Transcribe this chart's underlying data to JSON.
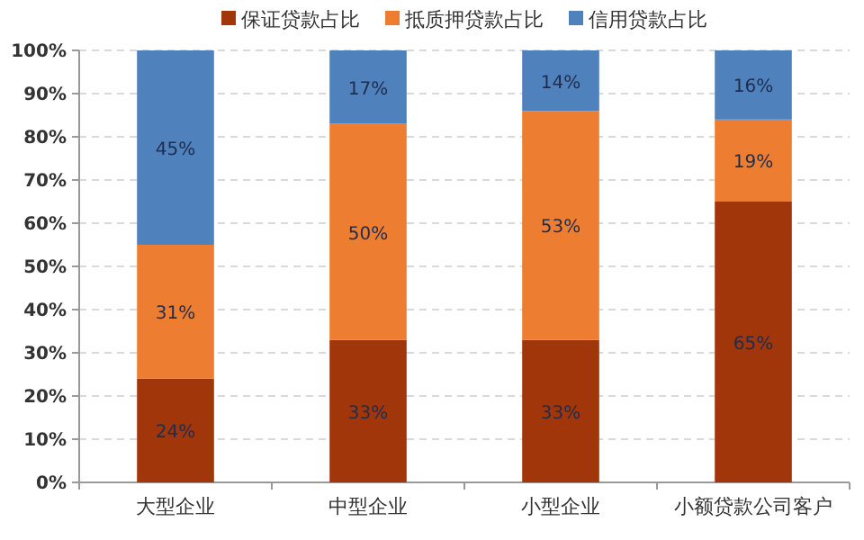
{
  "chart_data": {
    "type": "bar",
    "stacked": true,
    "categories": [
      "大型企业",
      "中型企业",
      "小型企业",
      "小额贷款公司客户"
    ],
    "series": [
      {
        "name": "保证贷款占比",
        "color": "#a0360a",
        "values": [
          24,
          33,
          33,
          65
        ],
        "value_labels": [
          "24%",
          "33%",
          "33%",
          "65%"
        ]
      },
      {
        "name": "抵质押贷款占比",
        "color": "#ed7d31",
        "values": [
          31,
          50,
          53,
          19
        ],
        "value_labels": [
          "31%",
          "50%",
          "53%",
          "19%"
        ]
      },
      {
        "name": "信用贷款占比",
        "color": "#4f81bd",
        "values": [
          45,
          17,
          14,
          16
        ],
        "value_labels": [
          "45%",
          "17%",
          "14%",
          "16%"
        ]
      }
    ],
    "ylim": [
      0,
      100
    ],
    "yticks": [
      {
        "value": 0,
        "label": "0%"
      },
      {
        "value": 10,
        "label": "10%"
      },
      {
        "value": 20,
        "label": "20%"
      },
      {
        "value": 30,
        "label": "30%"
      },
      {
        "value": 40,
        "label": "40%"
      },
      {
        "value": 50,
        "label": "50%"
      },
      {
        "value": 60,
        "label": "60%"
      },
      {
        "value": 70,
        "label": "70%"
      },
      {
        "value": 80,
        "label": "80%"
      },
      {
        "value": 90,
        "label": "90%"
      },
      {
        "value": 100,
        "label": "100%"
      }
    ],
    "grid": "y",
    "legend": "top"
  }
}
